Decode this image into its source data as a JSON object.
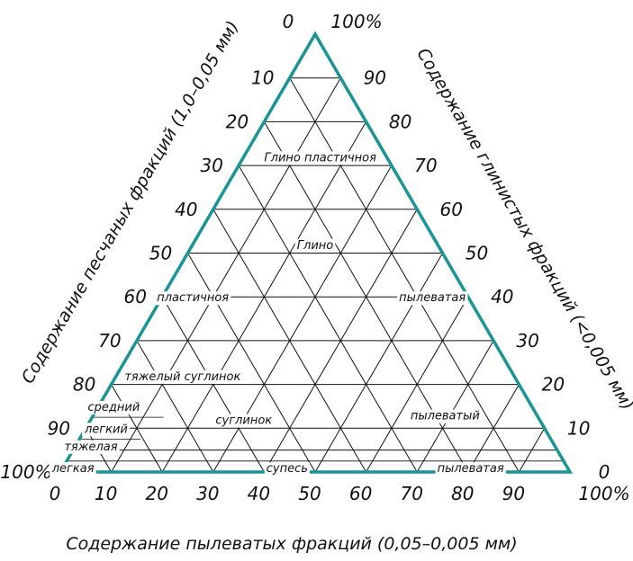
{
  "colors": {
    "outline": "#1a9494",
    "grid": "#111111",
    "text": "#111111"
  },
  "axes": {
    "left": {
      "title": "Содержание песчаных фракций (1,0–0,05 мм)",
      "ticks": [
        "0",
        "10",
        "20",
        "30",
        "40",
        "50",
        "60",
        "70",
        "80",
        "90",
        "100%"
      ]
    },
    "right": {
      "title": "Содержание глинистых фракций (<0,005 мм)",
      "ticks": [
        "100%",
        "90",
        "80",
        "70",
        "60",
        "50",
        "40",
        "30",
        "20",
        "10",
        "0"
      ]
    },
    "bottom": {
      "title": "Содержание пылеватых фракций (0,05–0,005 мм)",
      "ticks": [
        "0",
        "10",
        "20",
        "30",
        "40",
        "50",
        "60",
        "70",
        "80",
        "90",
        "100%"
      ]
    }
  },
  "regions": [
    {
      "id": "glina-plastichnaya",
      "label": "Глино пластичноя",
      "clay": 72,
      "silt": 15
    },
    {
      "id": "glina",
      "label": "Глино",
      "clay": 52,
      "silt": 24
    },
    {
      "id": "plastichnaya",
      "label": "пластичноя",
      "clay": 40,
      "silt": 6
    },
    {
      "id": "pylevataya-1",
      "label": "пылеватая",
      "clay": 40,
      "silt": 53
    },
    {
      "id": "tyazhely-suglinok",
      "label": "тяжелый суглинок",
      "clay": 22,
      "silt": 13
    },
    {
      "id": "sredniy",
      "label": "средний",
      "clay": 15,
      "silt": 3
    },
    {
      "id": "legkiy",
      "label": "легкий",
      "clay": 10,
      "silt": 4
    },
    {
      "id": "suglinok",
      "label": "суглинок",
      "clay": 12,
      "silt": 30
    },
    {
      "id": "pylevaty",
      "label": "пылеватый",
      "clay": 13,
      "silt": 69
    },
    {
      "id": "tyazhelaya",
      "label": "тяжелая",
      "clay": 6,
      "silt": 3
    },
    {
      "id": "legkaya",
      "label": "легкая",
      "clay": 1,
      "silt": 2
    },
    {
      "id": "supes",
      "label": "супесь",
      "clay": 1,
      "silt": 44
    },
    {
      "id": "pylevataya-2",
      "label": "пылеватая",
      "clay": 1,
      "silt": 80
    }
  ]
}
